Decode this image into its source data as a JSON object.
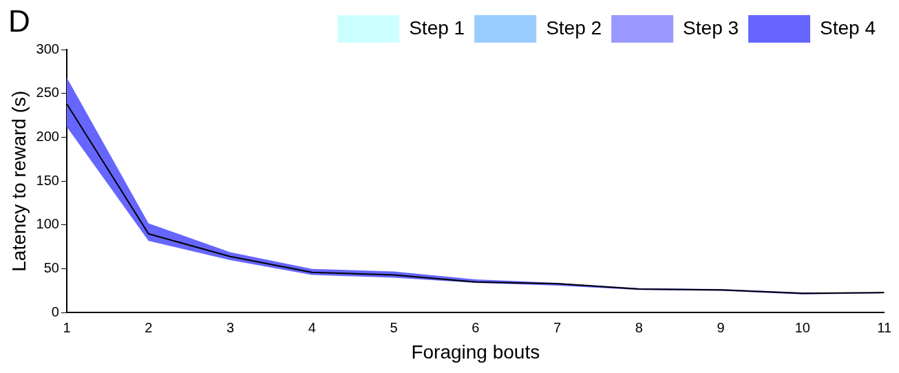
{
  "chart_data": {
    "type": "line",
    "xlabel": "Foraging bouts",
    "ylabel": "Latency to reward (s)",
    "annotations": [
      "D"
    ],
    "x": [
      1,
      2,
      3,
      4,
      5,
      6,
      7,
      8,
      9,
      10,
      11
    ],
    "series": [
      {
        "name": "Step 1",
        "color": "#ccffff",
        "values": [
          null,
          null,
          null,
          null,
          null,
          null,
          null,
          null,
          null,
          null,
          null
        ]
      },
      {
        "name": "Step 2",
        "color": "#99ccff",
        "values": [
          null,
          null,
          null,
          null,
          null,
          null,
          null,
          null,
          null,
          null,
          null
        ]
      },
      {
        "name": "Step 3",
        "color": "#9999ff",
        "values": [
          null,
          null,
          null,
          null,
          null,
          null,
          null,
          null,
          null,
          null,
          null
        ]
      },
      {
        "name": "Step 4",
        "color": "#6666ff",
        "values": [
          null,
          null,
          null,
          null,
          null,
          null,
          null,
          null,
          null,
          null,
          null
        ],
        "lower": [
          212,
          82,
          60,
          43,
          40,
          34,
          31,
          26,
          25,
          21,
          22
        ],
        "upper": [
          268,
          102,
          69,
          50,
          47,
          38,
          34,
          28,
          27,
          23,
          23
        ]
      },
      {
        "color": "#000000",
        "values": [
          238,
          90,
          64,
          46,
          43,
          35,
          33,
          27,
          26,
          22,
          23
        ]
      }
    ],
    "xlim": [
      1,
      11
    ],
    "xticks": [
      1,
      2,
      3,
      4,
      5,
      6,
      7,
      8,
      9,
      10,
      11
    ],
    "ylim": [
      0,
      300
    ],
    "yticks": [
      0,
      50,
      100,
      150,
      200,
      250,
      300
    ],
    "grid": false,
    "legend": "top right",
    "marker": "none",
    "line_style": "solid"
  }
}
